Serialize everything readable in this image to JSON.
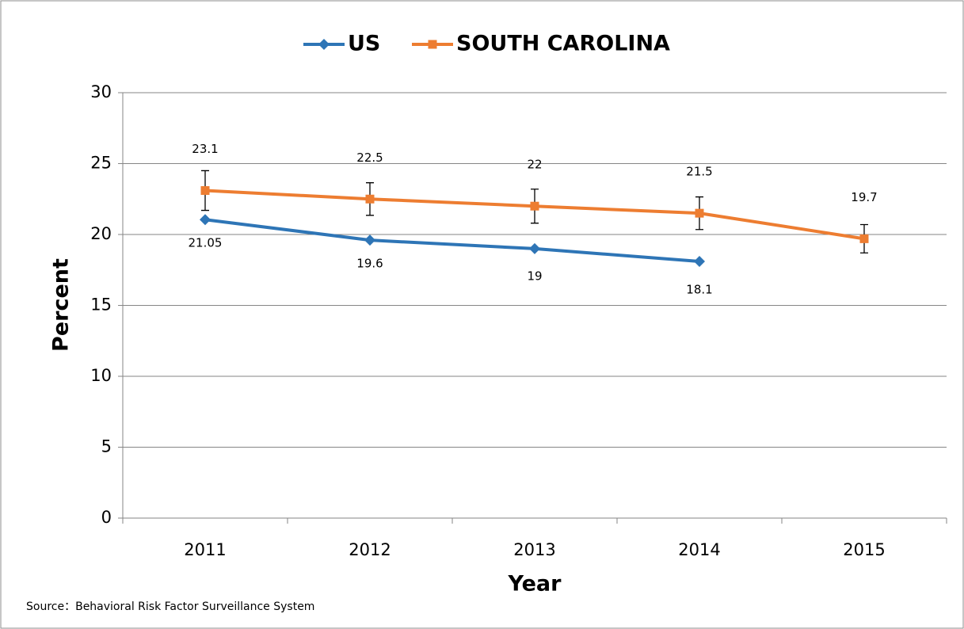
{
  "chart_data": {
    "type": "line",
    "categories": [
      "2011",
      "2012",
      "2013",
      "2014",
      "2015"
    ],
    "series": [
      {
        "name": "US",
        "color": "#2e75b6",
        "marker": "diamond",
        "values": [
          21.05,
          19.6,
          19,
          18.1,
          null
        ]
      },
      {
        "name": "SOUTH CAROLINA",
        "color": "#ed7d31",
        "marker": "square",
        "values": [
          23.1,
          22.5,
          22,
          21.5,
          19.7
        ],
        "errors": [
          1.4,
          1.15,
          1.2,
          1.15,
          1.0
        ]
      }
    ],
    "ylim": [
      0,
      30
    ],
    "yticks": [
      0,
      5,
      10,
      15,
      20,
      25,
      30
    ],
    "grid": true,
    "y_label": "Percent",
    "x_label": "Year",
    "legend": "top",
    "source": "Source：Behavioral Risk Factor  Surveillance System"
  }
}
